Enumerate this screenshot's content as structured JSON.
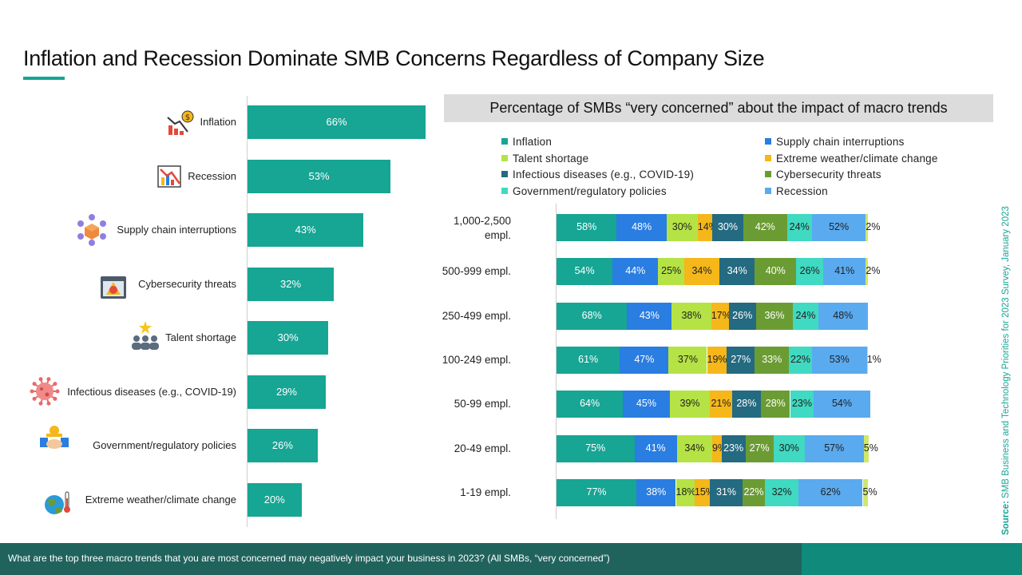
{
  "page": {
    "title": "Inflation and Recession Dominate SMB Concerns Regardless of Company Size",
    "source_prefix": "Source:",
    "source_text": " SMB Business and Technology Priorities for 2023 Survey, January 2023",
    "footer": "What are the top three macro trends that you are most concerned may negatively impact your business in 2023? (All SMBs, “very concerned”)"
  },
  "colors": {
    "teal": "#17a594",
    "footer_dark": "#20635d",
    "footer_accent": "#0f8a7b",
    "header_gray": "#dcdcdc"
  },
  "chart_data": [
    {
      "type": "bar",
      "orientation": "horizontal",
      "categories": [
        "Inflation",
        "Recession",
        "Supply chain interruptions",
        "Cybersecurity threats",
        "Talent shortage",
        "Infectious diseases (e.g., COVID-19)",
        "Government/regulatory policies",
        "Extreme weather/climate change"
      ],
      "values": [
        66,
        53,
        43,
        32,
        30,
        29,
        26,
        20
      ],
      "value_labels": [
        "66%",
        "53%",
        "43%",
        "32%",
        "30%",
        "29%",
        "26%",
        "20%"
      ],
      "icons": [
        "inflation-icon",
        "recession-icon",
        "supply-chain-icon",
        "cybersecurity-icon",
        "talent-icon",
        "virus-icon",
        "government-icon",
        "climate-icon"
      ],
      "color": "#17a594",
      "xlim": [
        0,
        66
      ]
    },
    {
      "type": "bar",
      "orientation": "horizontal",
      "stacked": true,
      "title": "Percentage of SMBs “very concerned” about the impact of macro trends",
      "legend_placement": "top",
      "categories": [
        "1,000-2,500 empl.",
        "500-999 empl.",
        "250-499 empl.",
        "100-249 empl.",
        "50-99 empl.",
        "20-49 empl.",
        "1-19 empl."
      ],
      "series": [
        {
          "name": "Inflation",
          "color": "#17a594",
          "text_color": "#ffffff",
          "values": [
            58,
            54,
            68,
            61,
            64,
            75,
            77
          ]
        },
        {
          "name": "Supply chain interruptions",
          "color": "#2a7de1",
          "text_color": "#ffffff",
          "values": [
            48,
            44,
            43,
            47,
            45,
            41,
            38
          ]
        },
        {
          "name": "Talent shortage",
          "color": "#b5e345",
          "text_color": "#222222",
          "values": [
            30,
            25,
            38,
            37,
            39,
            34,
            18
          ]
        },
        {
          "name": "Extreme weather/climate change",
          "color": "#f5b719",
          "text_color": "#222222",
          "values": [
            14,
            34,
            17,
            19,
            21,
            9,
            15
          ]
        },
        {
          "name": "Infectious diseases (e.g., COVID-19)",
          "color": "#246a80",
          "text_color": "#ffffff",
          "values": [
            30,
            34,
            26,
            27,
            28,
            23,
            31
          ]
        },
        {
          "name": "Cybersecurity threats",
          "color": "#6b9c33",
          "text_color": "#ffffff",
          "values": [
            42,
            40,
            36,
            33,
            28,
            27,
            22
          ]
        },
        {
          "name": "Government/regulatory policies",
          "color": "#40d9c1",
          "text_color": "#222222",
          "values": [
            24,
            26,
            24,
            22,
            23,
            30,
            32
          ]
        },
        {
          "name": "Recession",
          "color": "#5aaaf0",
          "text_color": "#222222",
          "values": [
            52,
            41,
            48,
            53,
            54,
            57,
            62
          ]
        },
        {
          "name": "",
          "color": "#cde86a",
          "text_color": "#222222",
          "values": [
            2,
            2,
            0,
            1,
            0,
            5,
            5
          ]
        }
      ],
      "labels": [
        [
          "58%",
          "48%",
          "30%",
          "14%",
          "30%",
          "42%",
          "24%",
          "52%",
          "2%"
        ],
        [
          "54%",
          "44%",
          "25%",
          "34%",
          "34%",
          "40%",
          "26%",
          "41%",
          "2%"
        ],
        [
          "68%",
          "43%",
          "38%",
          "17%",
          "26%",
          "36%",
          "24%",
          "48%",
          ""
        ],
        [
          "61%",
          "47%",
          "37%",
          "19%",
          "27%",
          "33%",
          "22%",
          "53%",
          "1%"
        ],
        [
          "64%",
          "45%",
          "39%",
          "21%",
          "28%",
          "28%",
          "23%",
          "54%",
          ""
        ],
        [
          "75%",
          "41%",
          "34%",
          "9%",
          "23%",
          "27%",
          "30%",
          "57%",
          "5%"
        ],
        [
          "77%",
          "38%",
          "18%",
          "15%",
          "31%",
          "22%",
          "32%",
          "62%",
          "5%"
        ]
      ],
      "legend": [
        "Inflation",
        "Supply chain interruptions",
        "Talent shortage",
        "Extreme weather/climate change",
        "Infectious diseases (e.g., COVID-19)",
        "Cybersecurity threats",
        "Government/regulatory policies",
        "Recession"
      ]
    }
  ]
}
